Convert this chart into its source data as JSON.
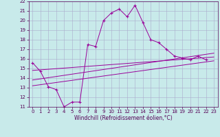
{
  "xlabel": "Windchill (Refroidissement éolien,°C)",
  "background_color": "#c8eaea",
  "grid_color": "#aaaacc",
  "line_color": "#990099",
  "xlim": [
    -0.5,
    23.5
  ],
  "ylim": [
    11,
    22
  ],
  "xticks": [
    0,
    1,
    2,
    3,
    4,
    5,
    6,
    7,
    8,
    9,
    10,
    11,
    12,
    13,
    14,
    15,
    16,
    17,
    18,
    19,
    20,
    21,
    22,
    23
  ],
  "yticks": [
    11,
    12,
    13,
    14,
    15,
    16,
    17,
    18,
    19,
    20,
    21,
    22
  ],
  "main_x": [
    0,
    1,
    2,
    3,
    4,
    5,
    6,
    7,
    8,
    9,
    10,
    11,
    12,
    13,
    14,
    15,
    16,
    17,
    18,
    19,
    20,
    21,
    22
  ],
  "main_y": [
    15.6,
    14.7,
    13.1,
    12.8,
    11.0,
    11.5,
    11.5,
    17.5,
    17.3,
    20.0,
    20.8,
    21.2,
    20.4,
    21.6,
    19.8,
    18.0,
    17.7,
    17.0,
    16.3,
    16.1,
    15.9,
    16.3,
    15.9
  ],
  "line1_x": [
    0,
    23
  ],
  "line1_y": [
    14.8,
    16.2
  ],
  "line2_x": [
    0,
    23
  ],
  "line2_y": [
    13.2,
    15.8
  ],
  "line3_x": [
    0,
    23
  ],
  "line3_y": [
    13.8,
    16.6
  ],
  "tick_fontsize": 5,
  "xlabel_fontsize": 5.5,
  "lw": 0.7
}
